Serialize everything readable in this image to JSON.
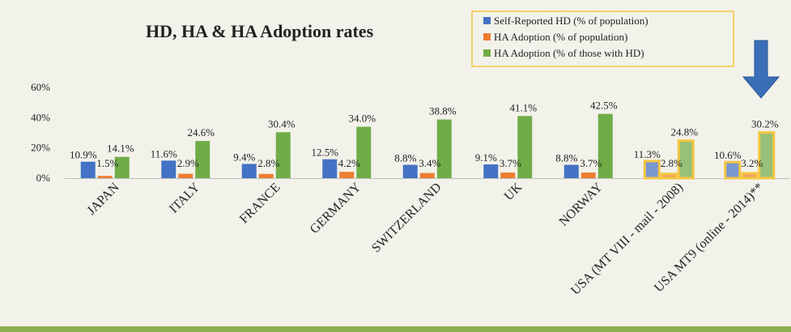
{
  "chart_data": {
    "type": "bar",
    "title": "HD, HA & HA Adoption rates",
    "categories": [
      "JAPAN",
      "ITALY",
      "FRANCE",
      "GERMANY",
      "SWITZERLAND",
      "UK",
      "NORWAY",
      "USA (MT VIII - mail - 2008)",
      "USA MT9 (online - 2014)**"
    ],
    "series": [
      {
        "name": "Self-Reported HD (% of population)",
        "color": "#4472c4",
        "values": [
          10.9,
          11.6,
          9.4,
          12.5,
          8.8,
          9.1,
          8.8,
          11.3,
          10.6
        ],
        "labels": [
          "10.9%",
          "11.6%",
          "9.4%",
          "12.5%",
          "8.8%",
          "9.1%",
          "8.8%",
          "11.3%",
          "10.6%"
        ]
      },
      {
        "name": "HA Adoption (% of population)",
        "color": "#ed7d31",
        "values": [
          1.5,
          2.9,
          2.8,
          4.2,
          3.4,
          3.7,
          3.7,
          2.8,
          3.2
        ],
        "labels": [
          "1.5%",
          "2.9%",
          "2.8%",
          "4.2%",
          "3.4%",
          "3.7%",
          "3.7%",
          "2.8%",
          "3.2%"
        ]
      },
      {
        "name": "HA Adoption (% of those with HD)",
        "color": "#70ad47",
        "values": [
          14.1,
          24.6,
          30.4,
          34.0,
          38.8,
          41.1,
          42.5,
          24.8,
          30.2
        ],
        "labels": [
          "14.1%",
          "24.6%",
          "30.4%",
          "34.0%",
          "38.8%",
          "41.1%",
          "42.5%",
          "24.8%",
          "30.2%"
        ]
      }
    ],
    "yticks": [
      "0%",
      "20%",
      "40%",
      "60%"
    ],
    "ylim": [
      0,
      60
    ],
    "grid": false,
    "legend": "top-right",
    "highlighted_categories": [
      "USA (MT VIII - mail - 2008)",
      "USA MT9 (online - 2014)**"
    ],
    "highlight_color": "#f5c542",
    "annotation": "down-arrow-icon",
    "annotation_color": "#3a6fb8",
    "footer_bar_color": "#8db04f"
  }
}
